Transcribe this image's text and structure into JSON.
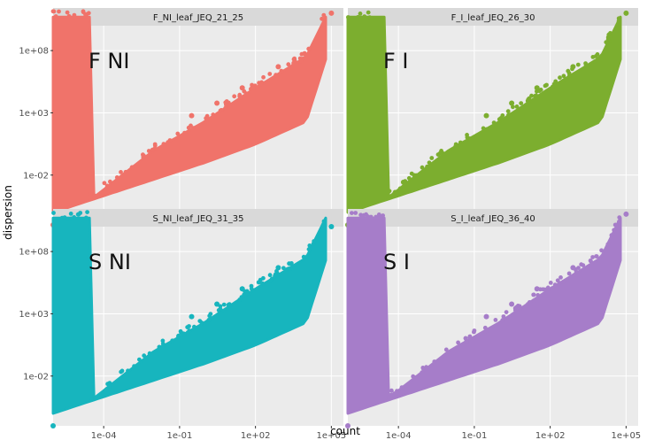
{
  "chart_data": {
    "type": "scatter",
    "xlabel": "count",
    "ylabel": "dispersion",
    "x_scale": "log10",
    "y_scale": "log10",
    "xlim": [
      1e-06,
      300000.0
    ],
    "ylim": [
      1e-06,
      10000000000.0
    ],
    "x_ticks": [
      {
        "value": 0.0001,
        "label": "1e-04"
      },
      {
        "value": 0.1,
        "label": "1e-01"
      },
      {
        "value": 100,
        "label": "1e+02"
      },
      {
        "value": 100000,
        "label": "1e+05"
      }
    ],
    "y_ticks": [
      {
        "value": 0.01,
        "label": "1e-02"
      },
      {
        "value": 1000,
        "label": "1e+03"
      },
      {
        "value": 100000000,
        "label": "1e+08"
      }
    ],
    "grid": true,
    "panels": [
      {
        "strip": "F_NI_leaf_JEQ_21_25",
        "label": "F  NI",
        "color": "#F0736A",
        "band_lower": [
          [
            1e-06,
            1e-05
          ],
          [
            0.001,
            0.001
          ],
          [
            1,
            0.1
          ],
          [
            100,
            3
          ],
          [
            10000,
            200
          ],
          [
            60000,
            20000000
          ]
        ],
        "band_upper": [
          [
            3e-05,
            0.0001
          ],
          [
            0.01,
            1
          ],
          [
            1,
            200
          ],
          [
            100,
            100000
          ],
          [
            10000,
            30000000
          ],
          [
            60000,
            50000000000
          ]
        ],
        "outliers": [
          [
            100000,
            100000000000
          ],
          [
            1e-06,
            1e-06
          ],
          [
            0.3,
            600
          ],
          [
            3,
            6000
          ],
          [
            30,
            100000
          ],
          [
            800,
            5000000
          ]
        ]
      },
      {
        "strip": "F_I_leaf_JEQ_26_30",
        "label": "F  I",
        "color": "#7CAE2F",
        "band_lower": [
          [
            1e-06,
            1e-05
          ],
          [
            0.001,
            0.001
          ],
          [
            1,
            0.1
          ],
          [
            100,
            3
          ],
          [
            10000,
            200
          ],
          [
            60000,
            20000000
          ]
        ],
        "band_upper": [
          [
            3e-05,
            0.0001
          ],
          [
            0.01,
            1
          ],
          [
            1,
            200
          ],
          [
            100,
            100000
          ],
          [
            10000,
            30000000
          ],
          [
            60000,
            50000000000
          ]
        ],
        "outliers": [
          [
            100000,
            100000000000
          ],
          [
            1e-06,
            1e-06
          ],
          [
            0.3,
            600
          ],
          [
            3,
            6000
          ],
          [
            30,
            100000
          ],
          [
            800,
            5000000
          ]
        ]
      },
      {
        "strip": "S_NI_leaf_JEQ_31_35",
        "label": "S  NI",
        "color": "#17B5BE",
        "band_lower": [
          [
            1e-06,
            1e-05
          ],
          [
            0.001,
            0.001
          ],
          [
            1,
            0.1
          ],
          [
            100,
            3
          ],
          [
            10000,
            200
          ],
          [
            60000,
            20000000
          ]
        ],
        "band_upper": [
          [
            3e-05,
            0.0001
          ],
          [
            0.01,
            1
          ],
          [
            1,
            200
          ],
          [
            100,
            100000
          ],
          [
            10000,
            30000000
          ],
          [
            60000,
            50000000000
          ]
        ],
        "outliers": [
          [
            100000,
            10000000000
          ],
          [
            1e-06,
            1e-06
          ],
          [
            0.3,
            600
          ],
          [
            3,
            6000
          ],
          [
            30,
            100000
          ],
          [
            800,
            5000000
          ]
        ]
      },
      {
        "strip": "S_I_leaf_JEQ_36_40",
        "label": "S  I",
        "color": "#A67DC9",
        "band_lower": [
          [
            1e-06,
            1e-05
          ],
          [
            0.001,
            0.001
          ],
          [
            1,
            0.1
          ],
          [
            100,
            3
          ],
          [
            10000,
            200
          ],
          [
            60000,
            20000000
          ]
        ],
        "band_upper": [
          [
            3e-05,
            0.0001
          ],
          [
            0.01,
            1
          ],
          [
            1,
            200
          ],
          [
            100,
            100000
          ],
          [
            10000,
            30000000
          ],
          [
            60000,
            50000000000
          ]
        ],
        "outliers": [
          [
            100000,
            100000000000
          ],
          [
            1e-06,
            1e-06
          ],
          [
            0.3,
            600
          ],
          [
            3,
            6000
          ],
          [
            30,
            100000
          ],
          [
            800,
            5000000
          ]
        ]
      }
    ]
  }
}
